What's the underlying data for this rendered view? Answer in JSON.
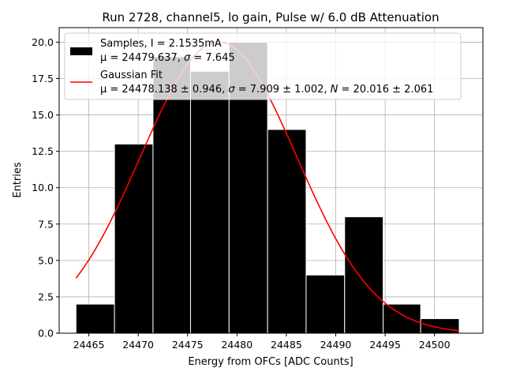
{
  "chart_data": {
    "type": "bar",
    "title": "Run 2728, channel5, lo gain, Pulse w/ 6.0 dB Attenuation",
    "xlabel": "Energy from OFCs [ADC Counts]",
    "ylabel": "Entries",
    "xlim": [
      24462.0,
      24504.9
    ],
    "ylim": [
      0,
      21
    ],
    "xticks": [
      24465,
      24470,
      24475,
      24480,
      24485,
      24490,
      24495,
      24500
    ],
    "yticks": [
      0.0,
      2.5,
      5.0,
      7.5,
      10.0,
      12.5,
      15.0,
      17.5,
      20.0
    ],
    "grid": true,
    "histogram": {
      "bin_edges": [
        24463.7,
        24467.6,
        24471.5,
        24475.3,
        24479.2,
        24483.1,
        24487.0,
        24490.9,
        24494.8,
        24498.6,
        24502.5
      ],
      "counts": [
        2,
        13,
        19,
        18,
        20,
        14,
        4,
        8,
        2,
        1
      ],
      "color": "#000000",
      "edgecolor": "#ffffff"
    },
    "fit": {
      "mu": 24478.138,
      "sigma": 7.909,
      "N": 20.016,
      "x_range": [
        24463.7,
        24502.5
      ],
      "color": "#ff0000"
    },
    "legend": {
      "placement": "upper-left",
      "samples_line1": "Samples, I = 2.1535mA",
      "samples_line2_prefix": "μ = 24479.637, ",
      "samples_line2_suffix": " = 7.645",
      "fit_line1": "Gaussian Fit",
      "fit_line2_prefix": "μ = 24478.138 ± 0.946, ",
      "fit_line2_mid": " = 7.909 ± 1.002, ",
      "fit_line2_suffix": " = 20.016 ± 2.061",
      "sigma_symbol": "σ",
      "n_symbol": "N"
    }
  }
}
